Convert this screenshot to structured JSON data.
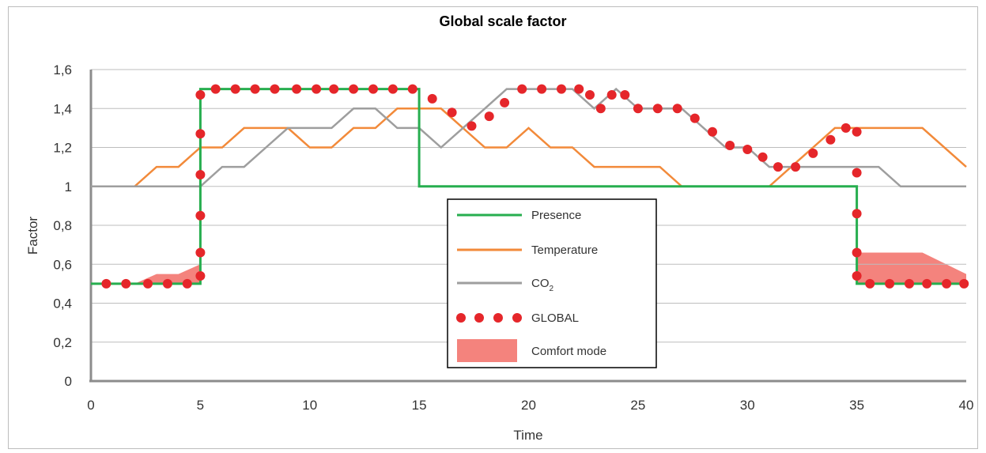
{
  "chart_data": {
    "type": "line",
    "title": "Global scale factor",
    "xlabel": "Time",
    "ylabel": "Factor",
    "xlim": [
      0,
      40
    ],
    "ylim": [
      0,
      1.6
    ],
    "x_ticks": [
      "0",
      "5",
      "10",
      "15",
      "20",
      "25",
      "30",
      "35",
      "40"
    ],
    "y_ticks": [
      "0",
      "0,2",
      "0,4",
      "0,6",
      "0,8",
      "1",
      "1,2",
      "1,4",
      "1,6"
    ],
    "grid": "horizontal",
    "legend_position": "center",
    "colors": {
      "presence": "#27ae4f",
      "temperature": "#f28a3a",
      "co2": "#9e9e9e",
      "global": "#e5262a",
      "comfort": "#f4837d"
    },
    "series": [
      {
        "name": "Presence",
        "key": "presence",
        "points": [
          [
            0,
            0.5
          ],
          [
            5,
            0.5
          ],
          [
            5,
            1.5
          ],
          [
            15,
            1.5
          ],
          [
            15,
            1.0
          ],
          [
            35,
            1.0
          ],
          [
            35,
            0.5
          ],
          [
            40,
            0.5
          ]
        ]
      },
      {
        "name": "Temperature",
        "key": "temperature",
        "points": [
          [
            0,
            1.0
          ],
          [
            2,
            1.0
          ],
          [
            3,
            1.1
          ],
          [
            4,
            1.1
          ],
          [
            5,
            1.2
          ],
          [
            6,
            1.2
          ],
          [
            7,
            1.3
          ],
          [
            9,
            1.3
          ],
          [
            10,
            1.2
          ],
          [
            11,
            1.2
          ],
          [
            12,
            1.3
          ],
          [
            13,
            1.3
          ],
          [
            14,
            1.4
          ],
          [
            16,
            1.4
          ],
          [
            17,
            1.3
          ],
          [
            18,
            1.2
          ],
          [
            19,
            1.2
          ],
          [
            20,
            1.3
          ],
          [
            21,
            1.2
          ],
          [
            22,
            1.2
          ],
          [
            23,
            1.1
          ],
          [
            26,
            1.1
          ],
          [
            27,
            1.0
          ],
          [
            31,
            1.0
          ],
          [
            32,
            1.1
          ],
          [
            33,
            1.2
          ],
          [
            34,
            1.3
          ],
          [
            38,
            1.3
          ],
          [
            40,
            1.1
          ]
        ]
      },
      {
        "name": "CO",
        "name_sub": "2",
        "key": "co2",
        "points": [
          [
            0,
            1.0
          ],
          [
            5,
            1.0
          ],
          [
            6,
            1.1
          ],
          [
            7,
            1.1
          ],
          [
            8,
            1.2
          ],
          [
            9,
            1.3
          ],
          [
            11,
            1.3
          ],
          [
            12,
            1.4
          ],
          [
            13,
            1.4
          ],
          [
            14,
            1.3
          ],
          [
            15,
            1.3
          ],
          [
            16,
            1.2
          ],
          [
            17,
            1.3
          ],
          [
            18,
            1.4
          ],
          [
            19,
            1.5
          ],
          [
            22,
            1.5
          ],
          [
            23,
            1.4
          ],
          [
            24,
            1.5
          ],
          [
            25,
            1.4
          ],
          [
            27,
            1.4
          ],
          [
            28,
            1.3
          ],
          [
            29,
            1.2
          ],
          [
            30,
            1.2
          ],
          [
            31,
            1.1
          ],
          [
            36,
            1.1
          ],
          [
            37,
            1.0
          ],
          [
            40,
            1.0
          ]
        ]
      },
      {
        "name": "GLOBAL",
        "key": "global",
        "style": "dots",
        "points": [
          [
            0.7,
            0.5
          ],
          [
            1.6,
            0.5
          ],
          [
            2.6,
            0.5
          ],
          [
            3.5,
            0.5
          ],
          [
            4.4,
            0.5
          ],
          [
            5,
            0.54
          ],
          [
            5,
            0.66
          ],
          [
            5,
            0.85
          ],
          [
            5,
            1.06
          ],
          [
            5,
            1.27
          ],
          [
            5,
            1.47
          ],
          [
            5.7,
            1.5
          ],
          [
            6.6,
            1.5
          ],
          [
            7.5,
            1.5
          ],
          [
            8.4,
            1.5
          ],
          [
            9.4,
            1.5
          ],
          [
            10.3,
            1.5
          ],
          [
            11.1,
            1.5
          ],
          [
            12,
            1.5
          ],
          [
            12.9,
            1.5
          ],
          [
            13.8,
            1.5
          ],
          [
            14.7,
            1.5
          ],
          [
            15.6,
            1.45
          ],
          [
            16.5,
            1.38
          ],
          [
            17.4,
            1.31
          ],
          [
            18.2,
            1.36
          ],
          [
            18.9,
            1.43
          ],
          [
            19.7,
            1.5
          ],
          [
            20.6,
            1.5
          ],
          [
            21.5,
            1.5
          ],
          [
            22.3,
            1.5
          ],
          [
            22.8,
            1.47
          ],
          [
            23.3,
            1.4
          ],
          [
            23.8,
            1.47
          ],
          [
            24.4,
            1.47
          ],
          [
            25,
            1.4
          ],
          [
            25.9,
            1.4
          ],
          [
            26.8,
            1.4
          ],
          [
            27.6,
            1.35
          ],
          [
            28.4,
            1.28
          ],
          [
            29.2,
            1.21
          ],
          [
            30,
            1.19
          ],
          [
            30.7,
            1.15
          ],
          [
            31.4,
            1.1
          ],
          [
            32.2,
            1.1
          ],
          [
            33,
            1.17
          ],
          [
            33.8,
            1.24
          ],
          [
            34.5,
            1.3
          ],
          [
            35,
            1.28
          ],
          [
            35,
            1.07
          ],
          [
            35,
            0.86
          ],
          [
            35,
            0.66
          ],
          [
            35,
            0.54
          ],
          [
            35.6,
            0.5
          ],
          [
            36.5,
            0.5
          ],
          [
            37.4,
            0.5
          ],
          [
            38.2,
            0.5
          ],
          [
            39.1,
            0.5
          ],
          [
            39.9,
            0.5
          ]
        ]
      },
      {
        "name": "Comfort mode",
        "key": "comfort",
        "style": "area",
        "regions": [
          {
            "points": [
              [
                2,
                0.5
              ],
              [
                3,
                0.55
              ],
              [
                4,
                0.55
              ],
              [
                5,
                0.6
              ],
              [
                5,
                0.5
              ]
            ]
          },
          {
            "points": [
              [
                35,
                0.5
              ],
              [
                35,
                0.66
              ],
              [
                38,
                0.66
              ],
              [
                40,
                0.55
              ],
              [
                40,
                0.5
              ]
            ]
          }
        ]
      }
    ]
  }
}
